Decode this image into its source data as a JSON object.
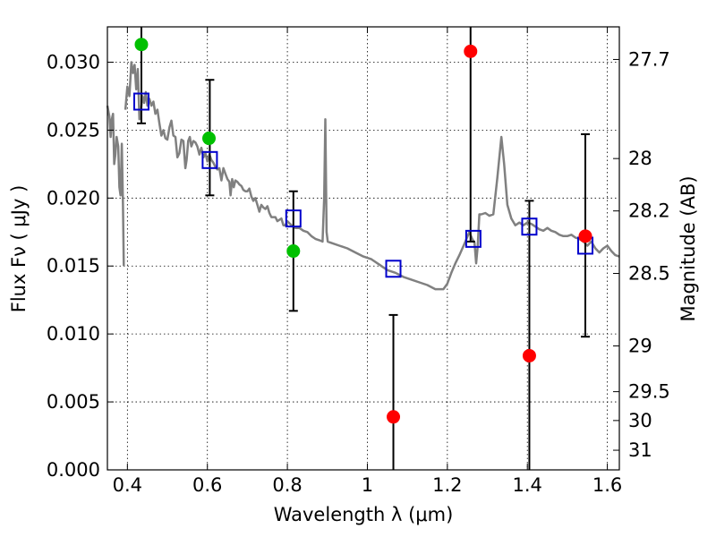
{
  "chart_data": {
    "type": "scatter",
    "xlabel": "Wavelength  λ (μm)",
    "ylabel": "Flux  Fν  ( μJy )",
    "y2label": "Magnitude (AB)",
    "xlim": [
      0.35,
      1.63
    ],
    "ylim": [
      0.0,
      0.0326
    ],
    "grid": true,
    "x_ticks": [
      0.4,
      0.6,
      0.8,
      1.0,
      1.2,
      1.4,
      1.6
    ],
    "x_tick_labels": [
      "0.4",
      "0.6",
      "0.8",
      "1",
      "1.2",
      "1.4",
      "1.6"
    ],
    "y_ticks": [
      0.0,
      0.005,
      0.01,
      0.015,
      0.02,
      0.025,
      0.03
    ],
    "y_tick_labels": [
      "0.000",
      "0.005",
      "0.010",
      "0.015",
      "0.020",
      "0.025",
      "0.030"
    ],
    "y2_ticks": [
      {
        "mag": 27.7,
        "label": "27.7"
      },
      {
        "mag": 28,
        "label": "28"
      },
      {
        "mag": 28.2,
        "label": "28.2"
      },
      {
        "mag": 28.5,
        "label": "28.5"
      },
      {
        "mag": 29,
        "label": "29"
      },
      {
        "mag": 29.5,
        "label": "29.5"
      },
      {
        "mag": 30,
        "label": "30"
      },
      {
        "mag": 31,
        "label": "31"
      }
    ],
    "template_spectrum": {
      "color": "#808080",
      "segments": [
        [
          [
            0.35,
            0.0268
          ],
          [
            0.355,
            0.026
          ],
          [
            0.358,
            0.0245
          ],
          [
            0.361,
            0.0258
          ],
          [
            0.364,
            0.0262
          ],
          [
            0.367,
            0.0225
          ],
          [
            0.37,
            0.0232
          ],
          [
            0.373,
            0.0245
          ],
          [
            0.377,
            0.0238
          ],
          [
            0.38,
            0.0208
          ],
          [
            0.383,
            0.0202
          ],
          [
            0.386,
            0.024
          ],
          [
            0.389,
            0.0195
          ],
          [
            0.391,
            0.015
          ]
        ],
        [
          [
            0.395,
            0.0265
          ],
          [
            0.4,
            0.0282
          ],
          [
            0.405,
            0.0275
          ],
          [
            0.41,
            0.03
          ],
          [
            0.414,
            0.0292
          ],
          [
            0.418,
            0.0298
          ],
          [
            0.422,
            0.028
          ],
          [
            0.426,
            0.0295
          ],
          [
            0.43,
            0.0258
          ],
          [
            0.434,
            0.0265
          ],
          [
            0.438,
            0.0275
          ],
          [
            0.442,
            0.027
          ],
          [
            0.446,
            0.0278
          ],
          [
            0.45,
            0.0268
          ],
          [
            0.455,
            0.0273
          ],
          [
            0.46,
            0.0268
          ],
          [
            0.465,
            0.0271
          ],
          [
            0.47,
            0.0262
          ],
          [
            0.475,
            0.0265
          ],
          [
            0.48,
            0.0255
          ],
          [
            0.485,
            0.0246
          ],
          [
            0.49,
            0.025
          ],
          [
            0.495,
            0.0244
          ],
          [
            0.5,
            0.0243
          ],
          [
            0.505,
            0.0252
          ],
          [
            0.51,
            0.0257
          ],
          [
            0.515,
            0.0246
          ],
          [
            0.52,
            0.0245
          ],
          [
            0.525,
            0.023
          ],
          [
            0.53,
            0.0233
          ],
          [
            0.535,
            0.0243
          ],
          [
            0.54,
            0.0242
          ],
          [
            0.545,
            0.0222
          ],
          [
            0.548,
            0.0228
          ],
          [
            0.552,
            0.0242
          ],
          [
            0.556,
            0.0245
          ],
          [
            0.56,
            0.0238
          ],
          [
            0.565,
            0.0242
          ],
          [
            0.57,
            0.0241
          ],
          [
            0.575,
            0.0238
          ],
          [
            0.58,
            0.0232
          ],
          [
            0.585,
            0.0237
          ],
          [
            0.59,
            0.023
          ],
          [
            0.595,
            0.0233
          ],
          [
            0.6,
            0.0227
          ],
          [
            0.605,
            0.0232
          ],
          [
            0.61,
            0.0228
          ],
          [
            0.615,
            0.0226
          ],
          [
            0.62,
            0.0223
          ],
          [
            0.625,
            0.0221
          ],
          [
            0.63,
            0.0222
          ],
          [
            0.635,
            0.0213
          ],
          [
            0.64,
            0.0222
          ],
          [
            0.645,
            0.0218
          ],
          [
            0.65,
            0.0214
          ],
          [
            0.655,
            0.0212
          ],
          [
            0.658,
            0.0202
          ],
          [
            0.662,
            0.0214
          ],
          [
            0.666,
            0.0208
          ],
          [
            0.67,
            0.0213
          ],
          [
            0.675,
            0.0212
          ],
          [
            0.68,
            0.021
          ],
          [
            0.685,
            0.0209
          ],
          [
            0.69,
            0.0206
          ],
          [
            0.695,
            0.0205
          ],
          [
            0.7,
            0.0205
          ],
          [
            0.705,
            0.0207
          ],
          [
            0.71,
            0.0201
          ],
          [
            0.715,
            0.0198
          ],
          [
            0.72,
            0.02
          ],
          [
            0.725,
            0.0195
          ],
          [
            0.73,
            0.019
          ],
          [
            0.735,
            0.0195
          ],
          [
            0.74,
            0.0193
          ],
          [
            0.745,
            0.0192
          ],
          [
            0.75,
            0.0194
          ],
          [
            0.755,
            0.0189
          ],
          [
            0.76,
            0.0186
          ],
          [
            0.765,
            0.0186
          ],
          [
            0.77,
            0.0186
          ],
          [
            0.775,
            0.0183
          ],
          [
            0.78,
            0.0184
          ],
          [
            0.785,
            0.0185
          ],
          [
            0.79,
            0.018
          ],
          [
            0.795,
            0.018
          ],
          [
            0.8,
            0.0183
          ],
          [
            0.81,
            0.018
          ],
          [
            0.82,
            0.0178
          ],
          [
            0.83,
            0.0178
          ],
          [
            0.84,
            0.0176
          ],
          [
            0.85,
            0.0175
          ],
          [
            0.86,
            0.0172
          ],
          [
            0.87,
            0.017
          ],
          [
            0.88,
            0.0169
          ],
          [
            0.888,
            0.0168
          ],
          [
            0.892,
            0.02
          ],
          [
            0.895,
            0.0258
          ],
          [
            0.898,
            0.0175
          ],
          [
            0.901,
            0.0168
          ],
          [
            0.91,
            0.0167
          ],
          [
            0.93,
            0.0165
          ],
          [
            0.95,
            0.0163
          ],
          [
            0.97,
            0.016
          ],
          [
            0.99,
            0.0157
          ],
          [
            1.01,
            0.0155
          ],
          [
            1.03,
            0.0151
          ],
          [
            1.05,
            0.0147
          ],
          [
            1.07,
            0.0145
          ],
          [
            1.09,
            0.0142
          ],
          [
            1.11,
            0.014
          ],
          [
            1.13,
            0.0138
          ],
          [
            1.15,
            0.0136
          ],
          [
            1.17,
            0.0133
          ],
          [
            1.19,
            0.0133
          ],
          [
            1.2,
            0.0137
          ],
          [
            1.21,
            0.0145
          ],
          [
            1.22,
            0.0152
          ],
          [
            1.23,
            0.0158
          ],
          [
            1.245,
            0.0168
          ],
          [
            1.255,
            0.0175
          ],
          [
            1.262,
            0.017
          ],
          [
            1.268,
            0.0167
          ],
          [
            1.272,
            0.0152
          ],
          [
            1.276,
            0.0165
          ],
          [
            1.28,
            0.0188
          ],
          [
            1.285,
            0.0188
          ],
          [
            1.295,
            0.0189
          ],
          [
            1.305,
            0.0187
          ],
          [
            1.315,
            0.0188
          ],
          [
            1.325,
            0.0215
          ],
          [
            1.335,
            0.0245
          ],
          [
            1.342,
            0.0225
          ],
          [
            1.35,
            0.0195
          ],
          [
            1.36,
            0.0185
          ],
          [
            1.37,
            0.018
          ],
          [
            1.38,
            0.0182
          ],
          [
            1.39,
            0.018
          ],
          [
            1.4,
            0.0182
          ],
          [
            1.41,
            0.0181
          ],
          [
            1.42,
            0.0179
          ],
          [
            1.43,
            0.0177
          ],
          [
            1.44,
            0.0176
          ],
          [
            1.45,
            0.0178
          ],
          [
            1.46,
            0.0176
          ],
          [
            1.47,
            0.0175
          ],
          [
            1.48,
            0.0173
          ],
          [
            1.49,
            0.0172
          ],
          [
            1.5,
            0.0172
          ],
          [
            1.51,
            0.0173
          ],
          [
            1.52,
            0.0171
          ],
          [
            1.53,
            0.017
          ],
          [
            1.54,
            0.0168
          ],
          [
            1.55,
            0.0165
          ],
          [
            1.56,
            0.0168
          ],
          [
            1.57,
            0.0163
          ],
          [
            1.58,
            0.016
          ],
          [
            1.59,
            0.0163
          ],
          [
            1.6,
            0.0165
          ],
          [
            1.61,
            0.0161
          ],
          [
            1.62,
            0.0158
          ],
          [
            1.63,
            0.0157
          ]
        ]
      ]
    },
    "series": [
      {
        "marker": "open-square",
        "color": "#0000cc",
        "points": [
          {
            "x": 0.435,
            "y": 0.0271,
            "yerr_low": 0.0255,
            "yerr_high": 0.0326
          },
          {
            "x": 0.606,
            "y": 0.0228,
            "yerr_low": 0.0202,
            "yerr_high": 0.0287
          },
          {
            "x": 0.815,
            "y": 0.0185,
            "yerr_low": 0.0117,
            "yerr_high": 0.0205
          },
          {
            "x": 1.065,
            "y": 0.0148,
            "yerr_low": null,
            "yerr_high": null
          },
          {
            "x": 1.265,
            "y": 0.017,
            "yerr_low": null,
            "yerr_high": null
          },
          {
            "x": 1.405,
            "y": 0.0179,
            "yerr_low": null,
            "yerr_high": null
          },
          {
            "x": 1.545,
            "y": 0.0165,
            "yerr_low": null,
            "yerr_high": null
          }
        ]
      },
      {
        "marker": "filled-circle",
        "color": "#00c000",
        "points": [
          {
            "x": 0.435,
            "y": 0.0313
          },
          {
            "x": 0.604,
            "y": 0.0244
          },
          {
            "x": 0.815,
            "y": 0.0161
          }
        ]
      },
      {
        "marker": "filled-circle",
        "color": "#ff0000",
        "points": [
          {
            "x": 1.065,
            "y": 0.0039,
            "yerr_low": 0.0,
            "yerr_high": 0.0114
          },
          {
            "x": 1.258,
            "y": 0.0308,
            "yerr_low": 0.0168,
            "yerr_high": 0.0326
          },
          {
            "x": 1.405,
            "y": 0.0084,
            "yerr_low": 0.0,
            "yerr_high": 0.0198
          },
          {
            "x": 1.545,
            "y": 0.0172,
            "yerr_low": 0.0098,
            "yerr_high": 0.0247
          }
        ]
      }
    ]
  }
}
